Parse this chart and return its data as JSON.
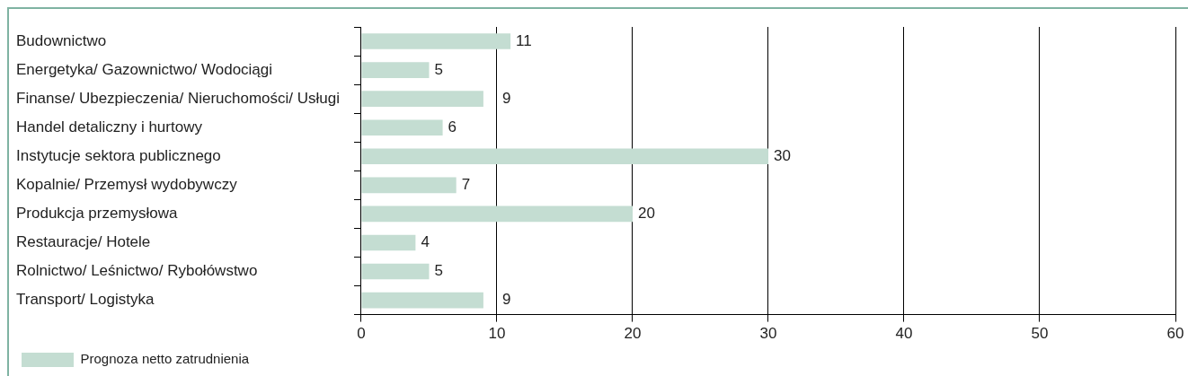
{
  "chart_data": {
    "type": "bar",
    "orientation": "horizontal",
    "categories": [
      "Budownictwo",
      "Energetyka/ Gazownictwo/ Wodociągi",
      "Finanse/ Ubezpieczenia/ Nieruchomości/ Usługi",
      "Handel detaliczny i hurtowy",
      "Instytucje sektora publicznego",
      "Kopalnie/ Przemysł wydobywczy",
      "Produkcja przemysłowa",
      "Restauracje/ Hotele",
      "Rolnictwo/ Leśnictwo/ Rybołówstwo",
      "Transport/ Logistyka"
    ],
    "series": [
      {
        "name": "Prognoza netto zatrudnienia",
        "color": "#c4ddd2",
        "values": [
          11,
          5,
          9,
          6,
          30,
          7,
          20,
          4,
          5,
          9
        ]
      }
    ],
    "xlim": [
      0,
      60
    ],
    "xticks": [
      0,
      10,
      20,
      30,
      40,
      50,
      60
    ],
    "grid": "x",
    "legend": "bottom left",
    "data_labels": true
  }
}
